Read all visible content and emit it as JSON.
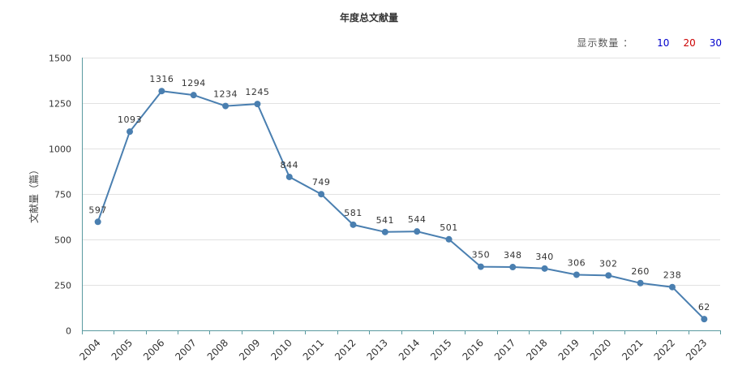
{
  "chart_data": {
    "type": "line",
    "title": "年度总文献量",
    "ylabel": "文献量（篇）",
    "xlabel": "",
    "x": [
      "2004",
      "2005",
      "2006",
      "2007",
      "2008",
      "2009",
      "2010",
      "2011",
      "2012",
      "2013",
      "2014",
      "2015",
      "2016",
      "2017",
      "2018",
      "2019",
      "2020",
      "2021",
      "2022",
      "2023"
    ],
    "series": [
      {
        "values": [
          597,
          1093,
          1316,
          1294,
          1234,
          1245,
          844,
          749,
          581,
          541,
          544,
          501,
          350,
          348,
          340,
          306,
          302,
          260,
          238,
          62
        ]
      }
    ],
    "ylim": [
      0,
      1500
    ],
    "yticks": [
      "0",
      "250",
      "500",
      "750",
      "1000",
      "1250",
      "1500"
    ],
    "grid": true,
    "colors": {
      "line": "#4a7fb0",
      "axis": "#5a9aa0"
    }
  },
  "controls": {
    "display_count_label": "显示数量 ：",
    "options": [
      "10",
      "20",
      "30"
    ]
  }
}
